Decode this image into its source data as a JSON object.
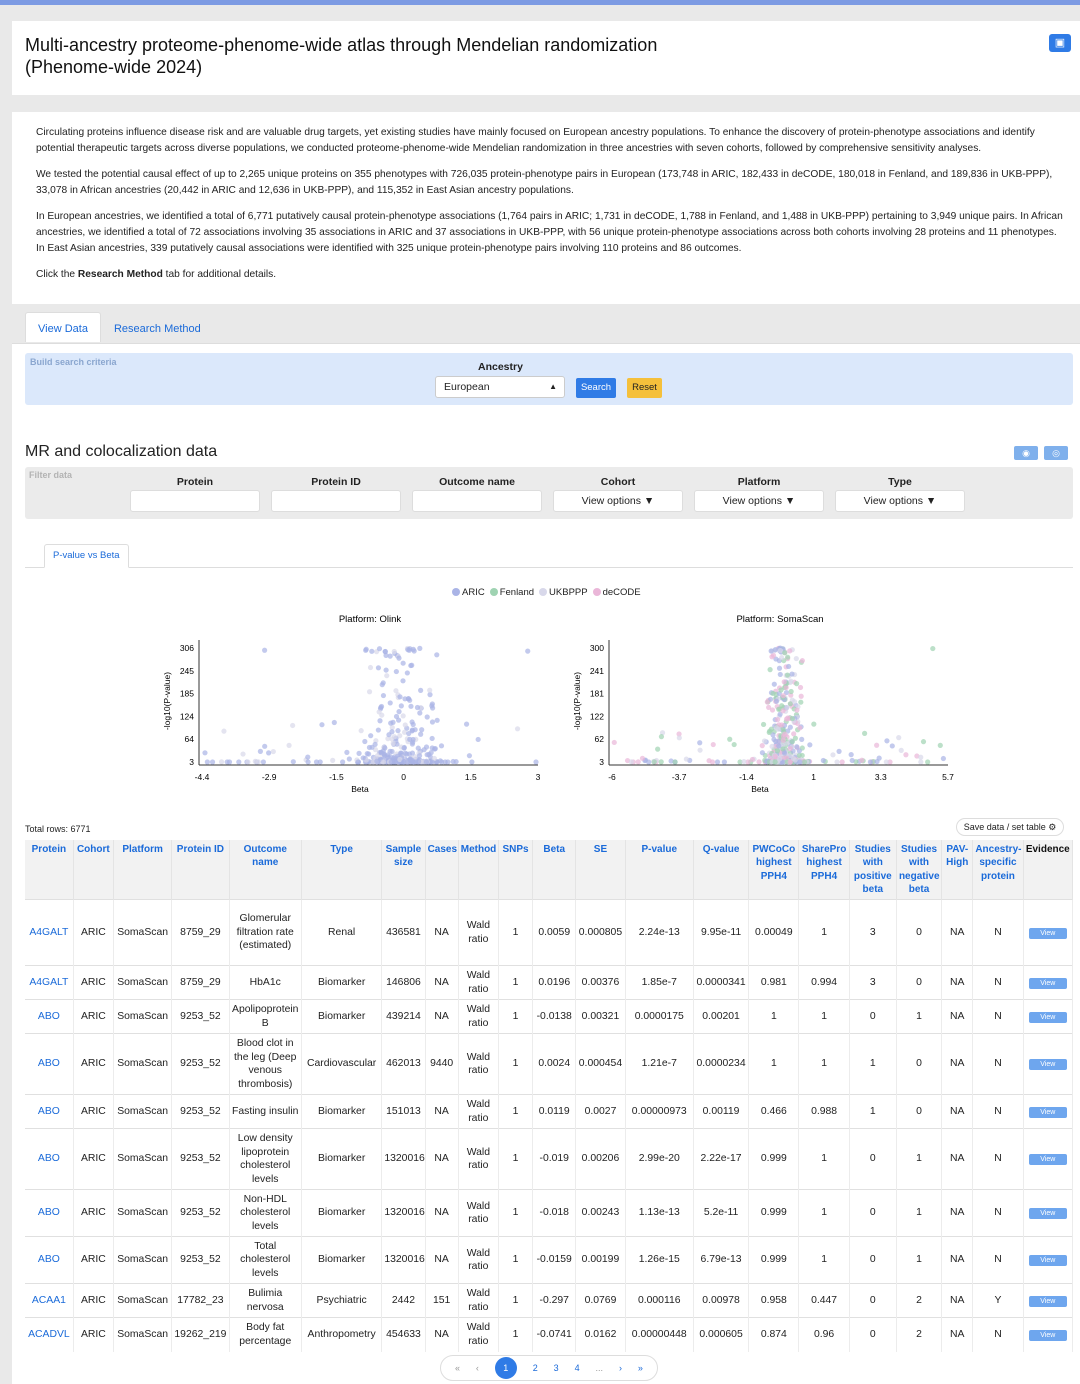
{
  "header": {
    "title_line1": "Multi-ancestry proteome-phenome-wide atlas through Mendelian randomization",
    "title_line2": "(Phenome-wide 2024)"
  },
  "intro": {
    "p1": "Circulating proteins influence disease risk and are valuable drug targets, yet existing studies have mainly focused on European ancestry populations. To enhance the discovery of protein-phenotype associations and identify potential therapeutic targets across diverse populations, we conducted proteome-phenome-wide Mendelian randomization in three ancestries with seven cohorts, followed by comprehensive sensitivity analyses.",
    "p2": "We tested the potential causal effect of up to 2,265 unique proteins on 355 phenotypes with 726,035 protein-phenotype pairs in European (173,748 in ARIC, 182,433 in deCODE, 180,018 in Fenland, and 189,836 in UKB-PPP), 33,078 in African ancestries (20,442 in ARIC and 12,636 in UKB-PPP), and 115,352 in East Asian ancestry populations.",
    "p3": "In European ancestries, we identified a total of 6,771 putatively causal protein-phenotype associations (1,764 pairs in ARIC; 1,731 in deCODE, 1,788 in Fenland, and 1,488 in UKB-PPP) pertaining to 3,949 unique pairs. In African ancestries, we identified a total of 72 associations involving 35 associations in ARIC and 37 associations in UKB-PPP, with 56 unique protein-phenotype associations across both cohorts involving 28 proteins and 11 phenotypes. In East Asian ancestries, 339 putatively causal associations were identified with 325 unique protein-phenotype pairs involving 110 proteins and 86 outcomes.",
    "p4_prefix": "Click the ",
    "p4_bold": "Research Method",
    "p4_suffix": " tab for additional details."
  },
  "tabs": {
    "view_data": "View Data",
    "research_method": "Research Method"
  },
  "search": {
    "label": "Build search criteria",
    "ancestry_label": "Ancestry",
    "ancestry_value": "European",
    "search_btn": "Search",
    "reset_btn": "Reset"
  },
  "section": {
    "title": "MR and colocalization data"
  },
  "filter": {
    "label": "Filter data",
    "cols": [
      "Protein",
      "Protein ID",
      "Outcome name",
      "Cohort",
      "Platform",
      "Type"
    ],
    "view_options": "View options ▼"
  },
  "plot_tab": "P-value vs Beta",
  "legend": [
    {
      "name": "ARIC",
      "color": "#aab4e6"
    },
    {
      "name": "Fenland",
      "color": "#9fd3b2"
    },
    {
      "name": "UKBPPP",
      "color": "#d8d8ea"
    },
    {
      "name": "deCODE",
      "color": "#eab6d8"
    }
  ],
  "chart_data": [
    {
      "type": "scatter",
      "title": "Platform: Olink",
      "xlabel": "Beta",
      "ylabel": "-log10(P-value)",
      "xticks": [
        "-4.4",
        "-2.9",
        "-1.5",
        "0",
        "1.5",
        "3"
      ],
      "yticks": [
        "3",
        "64",
        "124",
        "185",
        "245",
        "306"
      ],
      "xlim": [
        -4.4,
        3
      ],
      "ylim": [
        3,
        306
      ]
    },
    {
      "type": "scatter",
      "title": "Platform: SomaScan",
      "xlabel": "Beta",
      "ylabel": "-log10(P-value)",
      "xticks": [
        "-6",
        "-3.7",
        "-1.4",
        "1",
        "3.3",
        "5.7"
      ],
      "yticks": [
        "3",
        "62",
        "122",
        "181",
        "241",
        "300"
      ],
      "xlim": [
        -6,
        5.7
      ],
      "ylim": [
        3,
        300
      ]
    }
  ],
  "table": {
    "total_rows": "Total rows: 6771",
    "save_label": "Save data / set table ⚙",
    "headers": [
      "Protein",
      "Cohort",
      "Platform",
      "Protein ID",
      "Outcome name",
      "Type",
      "Sample size",
      "Cases",
      "Method",
      "SNPs",
      "Beta",
      "SE",
      "P-value",
      "Q-value",
      "PWCoCo highest PPH4",
      "SharePro highest PPH4",
      "Studies with positive beta",
      "Studies with negative beta",
      "PAV-High",
      "Ancestry-specific protein",
      "Evidence"
    ],
    "rows": [
      [
        "A4GALT",
        "ARIC",
        "SomaScan",
        "8759_29",
        "Glomerular filtration rate (estimated)",
        "Renal",
        "436581",
        "NA",
        "Wald ratio",
        "1",
        "0.0059",
        "0.000805",
        "2.24e-13",
        "9.95e-11",
        "0.00049",
        "1",
        "3",
        "0",
        "NA",
        "N",
        "View"
      ],
      [
        "A4GALT",
        "ARIC",
        "SomaScan",
        "8759_29",
        "HbA1c",
        "Biomarker",
        "146806",
        "NA",
        "Wald ratio",
        "1",
        "0.0196",
        "0.00376",
        "1.85e-7",
        "0.0000341",
        "0.981",
        "0.994",
        "3",
        "0",
        "NA",
        "N",
        "View"
      ],
      [
        "ABO",
        "ARIC",
        "SomaScan",
        "9253_52",
        "Apolipoprotein B",
        "Biomarker",
        "439214",
        "NA",
        "Wald ratio",
        "1",
        "-0.0138",
        "0.00321",
        "0.0000175",
        "0.00201",
        "1",
        "1",
        "0",
        "1",
        "NA",
        "N",
        "View"
      ],
      [
        "ABO",
        "ARIC",
        "SomaScan",
        "9253_52",
        "Blood clot in the leg (Deep venous thrombosis)",
        "Cardiovascular",
        "462013",
        "9440",
        "Wald ratio",
        "1",
        "0.0024",
        "0.000454",
        "1.21e-7",
        "0.0000234",
        "1",
        "1",
        "1",
        "0",
        "NA",
        "N",
        "View"
      ],
      [
        "ABO",
        "ARIC",
        "SomaScan",
        "9253_52",
        "Fasting insulin",
        "Biomarker",
        "151013",
        "NA",
        "Wald ratio",
        "1",
        "0.0119",
        "0.0027",
        "0.00000973",
        "0.00119",
        "0.466",
        "0.988",
        "1",
        "0",
        "NA",
        "N",
        "View"
      ],
      [
        "ABO",
        "ARIC",
        "SomaScan",
        "9253_52",
        "Low density lipoprotein cholesterol levels",
        "Biomarker",
        "1320016",
        "NA",
        "Wald ratio",
        "1",
        "-0.019",
        "0.00206",
        "2.99e-20",
        "2.22e-17",
        "0.999",
        "1",
        "0",
        "1",
        "NA",
        "N",
        "View"
      ],
      [
        "ABO",
        "ARIC",
        "SomaScan",
        "9253_52",
        "Non-HDL cholesterol levels",
        "Biomarker",
        "1320016",
        "NA",
        "Wald ratio",
        "1",
        "-0.018",
        "0.00243",
        "1.13e-13",
        "5.2e-11",
        "0.999",
        "1",
        "0",
        "1",
        "NA",
        "N",
        "View"
      ],
      [
        "ABO",
        "ARIC",
        "SomaScan",
        "9253_52",
        "Total cholesterol levels",
        "Biomarker",
        "1320016",
        "NA",
        "Wald ratio",
        "1",
        "-0.0159",
        "0.00199",
        "1.26e-15",
        "6.79e-13",
        "0.999",
        "1",
        "0",
        "1",
        "NA",
        "N",
        "View"
      ],
      [
        "ACAA1",
        "ARIC",
        "SomaScan",
        "17782_23",
        "Bulimia nervosa",
        "Psychiatric",
        "2442",
        "151",
        "Wald ratio",
        "1",
        "-0.297",
        "0.0769",
        "0.000116",
        "0.00978",
        "0.958",
        "0.447",
        "0",
        "2",
        "NA",
        "Y",
        "View"
      ],
      [
        "ACADVL",
        "ARIC",
        "SomaScan",
        "19262_219",
        "Body fat percentage",
        "Anthropometry",
        "454633",
        "NA",
        "Wald ratio",
        "1",
        "-0.0741",
        "0.0162",
        "0.00000448",
        "0.000605",
        "0.874",
        "0.96",
        "0",
        "2",
        "NA",
        "N",
        "View"
      ]
    ]
  },
  "pager": {
    "first": "«",
    "prev": "‹",
    "pages": [
      "1",
      "2",
      "3",
      "4"
    ],
    "ellipsis": "...",
    "next": "›",
    "last": "»"
  }
}
